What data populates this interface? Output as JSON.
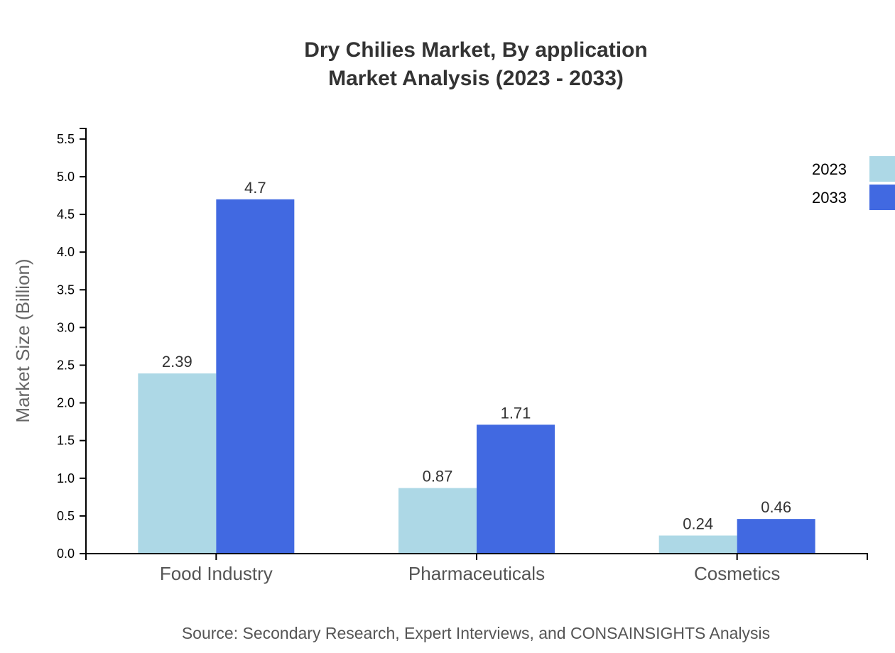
{
  "chart_data": {
    "type": "bar",
    "title": "Dry Chilies Market, By application",
    "subtitle": "Market Analysis (2023 - 2033)",
    "xlabel": "",
    "ylabel": "Market Size (Billion)",
    "ylim": [
      0,
      5.64
    ],
    "yticks": [
      "0.0",
      "0.5",
      "1.0",
      "1.5",
      "2.0",
      "2.5",
      "3.0",
      "3.5",
      "4.0",
      "4.5",
      "5.0",
      "5.5"
    ],
    "categories": [
      "Food Industry",
      "Pharmaceuticals",
      "Cosmetics"
    ],
    "series": [
      {
        "name": "2023",
        "values": [
          2.39,
          0.87,
          0.24
        ],
        "labels": [
          "2.39",
          "0.87",
          "0.24"
        ],
        "color": "#add8e6"
      },
      {
        "name": "2033",
        "values": [
          4.7,
          1.71,
          0.46
        ],
        "labels": [
          "4.7",
          "1.71",
          "0.46"
        ],
        "color": "#4169e1"
      }
    ],
    "legend": "top-right",
    "grid": false,
    "source": "Source: Secondary Research, Expert Interviews, and CONSAINSIGHTS Analysis"
  }
}
